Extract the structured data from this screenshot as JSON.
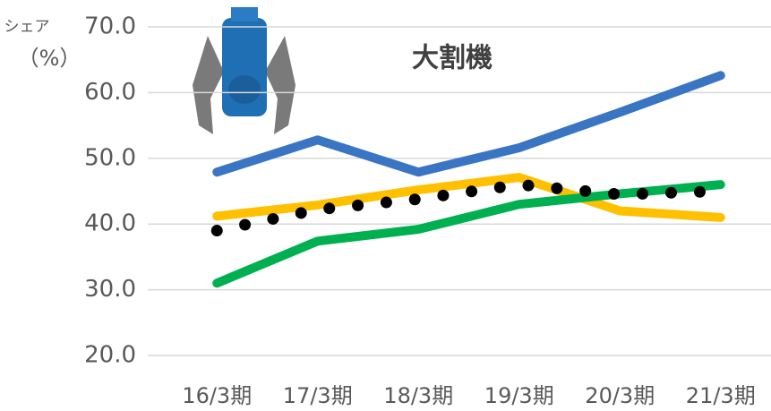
{
  "chart_data": {
    "type": "line",
    "title": "大割機",
    "ylabel": [
      "シェア",
      "（%）"
    ],
    "categories": [
      "16/3期",
      "17/3期",
      "18/3期",
      "19/3期",
      "20/3期",
      "21/3期"
    ],
    "series": [
      {
        "color": "#3a75c4",
        "values": [
          47.9,
          52.8,
          47.9,
          51.6,
          57.0,
          62.6
        ]
      },
      {
        "color": "#ffc000",
        "values": [
          41.2,
          42.9,
          45.2,
          47.1,
          42.0,
          41.0
        ]
      },
      {
        "color": "#00b050",
        "values": [
          31.0,
          37.4,
          39.2,
          43.0,
          44.6,
          46.0
        ]
      },
      {
        "color": "#000000",
        "style": "dotted",
        "values": [
          39.0,
          42.2,
          43.8,
          46.0,
          44.5,
          45.0
        ]
      }
    ],
    "ylim": [
      20,
      70
    ],
    "yticks": [
      {
        "value": 20,
        "label": "20.0"
      },
      {
        "value": 30,
        "label": "30.0"
      },
      {
        "value": 40,
        "label": "40.0"
      },
      {
        "value": 50,
        "label": "50.0"
      },
      {
        "value": 60,
        "label": "60.0"
      },
      {
        "value": 70,
        "label": "70.0"
      }
    ],
    "grid": true
  }
}
